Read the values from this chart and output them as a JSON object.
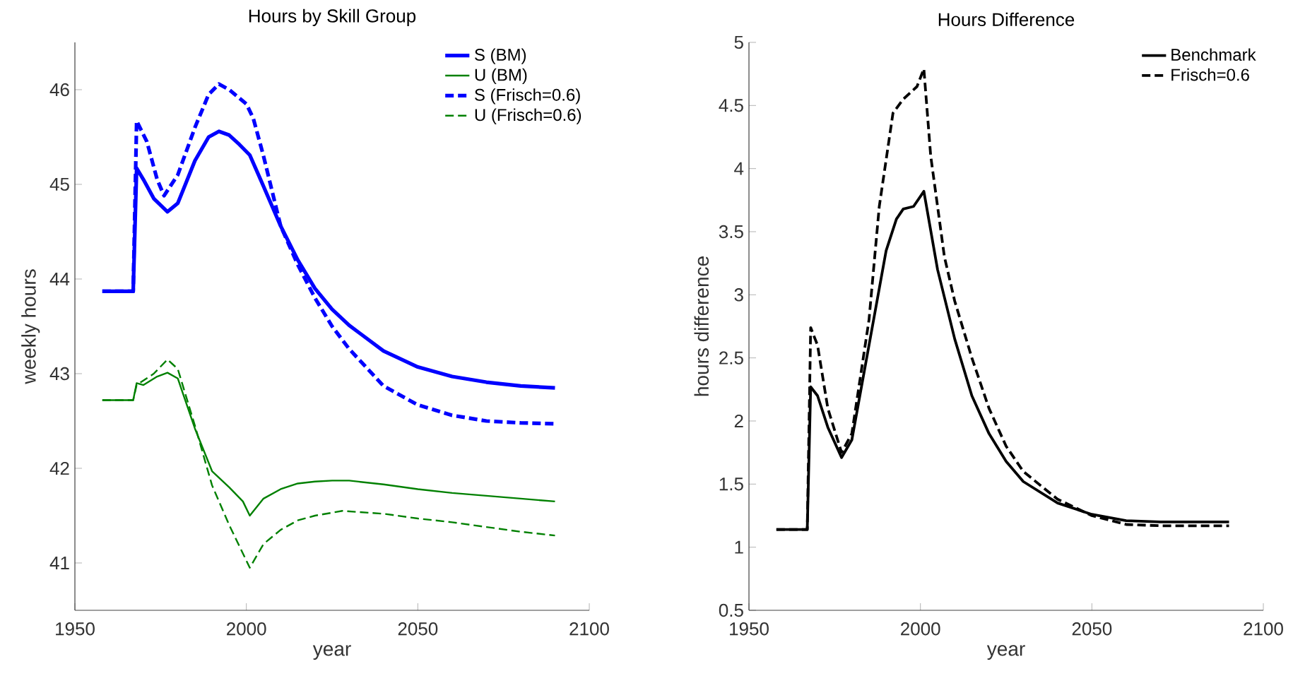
{
  "chart_data": [
    {
      "type": "line",
      "title": "Hours by Skill Group",
      "xlabel": "year",
      "ylabel": "weekly hours",
      "xlim": [
        1950,
        2100
      ],
      "ylim": [
        40.5,
        46.5
      ],
      "xticks": [
        1950,
        2000,
        2050,
        2100
      ],
      "yticks": [
        41,
        42,
        43,
        44,
        45,
        46
      ],
      "legend": "top right",
      "grid": false,
      "series": [
        {
          "name": "S (BM)",
          "color": "#0000ff",
          "line_style": "solid",
          "x": [
            1958,
            1967,
            1968,
            1970,
            1973,
            1977,
            1980,
            1985,
            1989,
            1992,
            1995,
            1998,
            2001,
            2005,
            2010,
            2015,
            2020,
            2025,
            2030,
            2040,
            2050,
            2060,
            2070,
            2080,
            2090
          ],
          "values": [
            43.87,
            43.87,
            45.17,
            45.05,
            44.85,
            44.71,
            44.8,
            45.25,
            45.5,
            45.56,
            45.52,
            45.42,
            45.31,
            44.98,
            44.56,
            44.2,
            43.9,
            43.68,
            43.51,
            43.24,
            43.07,
            42.97,
            42.91,
            42.87,
            42.85
          ]
        },
        {
          "name": "U (BM)",
          "color": "#008000",
          "line_style": "solid",
          "x": [
            1958,
            1967,
            1968,
            1970,
            1974,
            1977,
            1980,
            1985,
            1990,
            1995,
            1999,
            2001,
            2005,
            2010,
            2015,
            2020,
            2025,
            2030,
            2040,
            2050,
            2060,
            2070,
            2080,
            2090
          ],
          "values": [
            42.72,
            42.72,
            42.9,
            42.88,
            42.97,
            43.01,
            42.95,
            42.42,
            41.97,
            41.8,
            41.65,
            41.5,
            41.68,
            41.78,
            41.84,
            41.86,
            41.87,
            41.87,
            41.83,
            41.78,
            41.74,
            41.71,
            41.68,
            41.65
          ]
        },
        {
          "name": "S (Frisch=0.6)",
          "color": "#0000ff",
          "line_style": "dashed",
          "x": [
            1958,
            1967,
            1968,
            1971,
            1974,
            1976,
            1980,
            1985,
            1989,
            1992,
            1995,
            2000,
            2002,
            2005,
            2010,
            2015,
            2020,
            2025,
            2030,
            2040,
            2050,
            2060,
            2070,
            2080,
            2090
          ],
          "values": [
            43.87,
            43.87,
            45.67,
            45.45,
            45.05,
            44.88,
            45.1,
            45.6,
            45.95,
            46.06,
            46.0,
            45.85,
            45.7,
            45.3,
            44.56,
            44.15,
            43.8,
            43.5,
            43.26,
            42.87,
            42.67,
            42.56,
            42.5,
            42.48,
            42.47
          ]
        },
        {
          "name": "U (Frisch=0.6)",
          "color": "#008000",
          "line_style": "dashed",
          "x": [
            1958,
            1967,
            1968,
            1973,
            1977,
            1980,
            1985,
            1990,
            1995,
            2001,
            2005,
            2010,
            2015,
            2020,
            2028,
            2040,
            2050,
            2060,
            2070,
            2080,
            2090
          ],
          "values": [
            42.72,
            42.72,
            42.88,
            43.0,
            43.15,
            43.05,
            42.45,
            41.82,
            41.4,
            40.95,
            41.2,
            41.35,
            41.45,
            41.5,
            41.55,
            41.52,
            41.47,
            41.43,
            41.38,
            41.33,
            41.29
          ]
        }
      ]
    },
    {
      "type": "line",
      "title": "Hours Difference",
      "xlabel": "year",
      "ylabel": "hours difference",
      "xlim": [
        1950,
        2100
      ],
      "ylim": [
        0.5,
        5
      ],
      "xticks": [
        1950,
        2000,
        2050,
        2100
      ],
      "yticks": [
        0.5,
        1,
        1.5,
        2,
        2.5,
        3,
        3.5,
        4,
        4.5,
        5
      ],
      "legend": "top right",
      "grid": false,
      "series": [
        {
          "name": "Benchmark",
          "color": "#000000",
          "line_style": "solid",
          "x": [
            1958,
            1967,
            1968,
            1970,
            1973,
            1977,
            1980,
            1985,
            1990,
            1993,
            1995,
            1998,
            2001,
            2005,
            2010,
            2015,
            2020,
            2025,
            2030,
            2040,
            2050,
            2060,
            2070,
            2090
          ],
          "values": [
            1.14,
            1.14,
            2.27,
            2.2,
            1.95,
            1.71,
            1.85,
            2.6,
            3.35,
            3.6,
            3.68,
            3.7,
            3.82,
            3.2,
            2.65,
            2.2,
            1.9,
            1.68,
            1.52,
            1.35,
            1.26,
            1.21,
            1.2,
            1.2
          ]
        },
        {
          "name": "Frisch=0.6",
          "color": "#000000",
          "line_style": "dashed",
          "x": [
            1958,
            1967,
            1968,
            1970,
            1973,
            1977,
            1980,
            1985,
            1988,
            1992,
            1995,
            1999,
            2001,
            2003,
            2007,
            2010,
            2015,
            2020,
            2025,
            2030,
            2040,
            2050,
            2060,
            2070,
            2090
          ],
          "values": [
            1.14,
            1.14,
            2.74,
            2.6,
            2.1,
            1.75,
            1.9,
            2.8,
            3.7,
            4.44,
            4.55,
            4.65,
            4.79,
            4.1,
            3.3,
            2.95,
            2.5,
            2.1,
            1.8,
            1.6,
            1.38,
            1.25,
            1.18,
            1.17,
            1.17
          ]
        }
      ]
    }
  ]
}
